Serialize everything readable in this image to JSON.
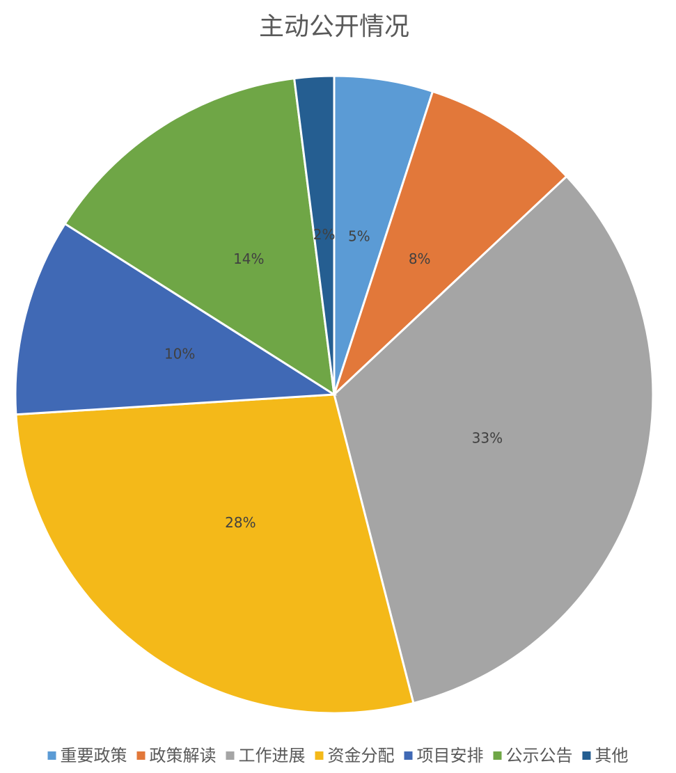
{
  "chart_data": {
    "type": "pie",
    "title": "主动公开情况",
    "categories": [
      "重要政策",
      "政策解读",
      "工作进展",
      "资金分配",
      "项目安排",
      "公示公告",
      "其他"
    ],
    "values": [
      5,
      8,
      33,
      28,
      10,
      14,
      2
    ],
    "value_labels": [
      "5%",
      "8%",
      "33%",
      "28%",
      "10%",
      "14%",
      "2%"
    ],
    "colors": [
      "#5b9bd5",
      "#e2783a",
      "#a5a5a5",
      "#f4b919",
      "#4069b5",
      "#6fa646",
      "#255e91"
    ],
    "legend": "bottom"
  }
}
